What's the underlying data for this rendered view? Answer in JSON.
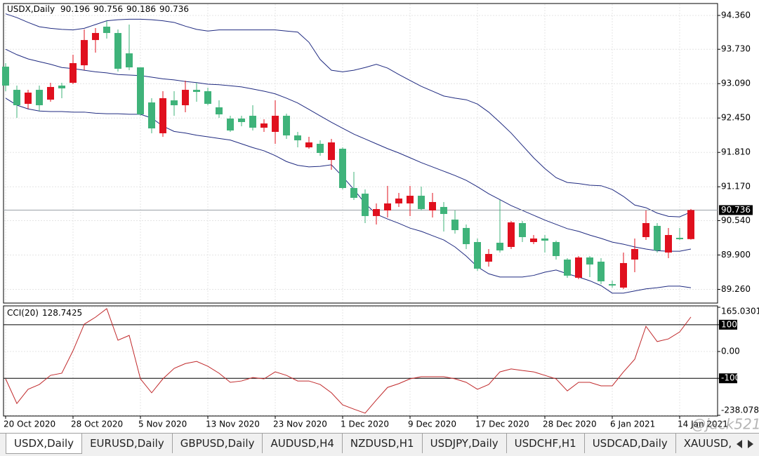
{
  "chart_data": [
    {
      "type": "candlestick",
      "title": "USDX,Daily",
      "categories": [
        "20 Oct 2020",
        null,
        null,
        null,
        null,
        null,
        "28 Oct 2020",
        null,
        null,
        null,
        null,
        null,
        "5 Nov 2020",
        null,
        null,
        null,
        null,
        null,
        "13 Nov 2020",
        null,
        null,
        null,
        null,
        null,
        "23 Nov 2020",
        null,
        null,
        null,
        null,
        null,
        "1 Dec 2020",
        null,
        null,
        null,
        null,
        null,
        "9 Dec 2020",
        null,
        null,
        null,
        null,
        null,
        "17 Dec 2020",
        null,
        null,
        null,
        null,
        null,
        "28 Dec 2020",
        null,
        null,
        null,
        null,
        null,
        "6 Jan 2021",
        null,
        null,
        null,
        null,
        null,
        "14 Jan 2021",
        null
      ],
      "open": [
        93.406,
        92.975,
        92.714,
        92.975,
        92.792,
        93.054,
        93.106,
        93.432,
        93.902,
        94.151,
        94.033,
        93.654,
        93.393,
        92.74,
        92.166,
        92.779,
        92.688,
        92.975,
        92.949,
        92.649,
        92.44,
        92.44,
        92.492,
        92.27,
        92.192,
        92.492,
        92.126,
        91.904,
        91.97,
        91.669,
        91.878,
        91.147,
        91.042,
        90.625,
        90.729,
        90.86,
        90.86,
        91.003,
        90.729,
        90.794,
        90.559,
        90.403,
        90.141,
        89.776,
        90.128,
        90.05,
        90.494,
        90.141,
        90.207,
        90.141,
        89.815,
        89.476,
        89.854,
        89.776,
        89.358,
        89.293,
        89.815,
        90.233,
        90.442,
        89.946,
        90.22,
        90.196
      ],
      "high": [
        93.472,
        93.054,
        92.975,
        93.054,
        93.106,
        93.106,
        93.628,
        94.098,
        94.125,
        94.255,
        94.098,
        94.19,
        93.393,
        92.819,
        92.949,
        92.949,
        93.145,
        93.106,
        93.015,
        92.779,
        92.492,
        92.492,
        92.688,
        92.427,
        92.779,
        92.531,
        92.192,
        92.1,
        92.035,
        92.061,
        91.904,
        91.447,
        91.121,
        90.86,
        91.186,
        91.055,
        91.186,
        91.173,
        91.055,
        90.886,
        90.729,
        90.468,
        90.207,
        90.011,
        90.925,
        90.533,
        90.533,
        90.272,
        90.272,
        90.167,
        89.841,
        89.88,
        89.88,
        89.841,
        89.423,
        89.946,
        90.207,
        90.729,
        90.494,
        90.403,
        90.403,
        90.756
      ],
      "low": [
        92.949,
        92.453,
        92.623,
        92.584,
        92.753,
        92.819,
        93.08,
        93.341,
        93.668,
        93.929,
        93.315,
        93.341,
        92.492,
        92.166,
        92.1,
        92.492,
        92.557,
        92.753,
        92.688,
        92.453,
        92.192,
        92.296,
        92.218,
        92.192,
        91.97,
        92.061,
        91.904,
        91.878,
        91.748,
        91.486,
        91.121,
        90.925,
        90.494,
        90.468,
        90.599,
        90.794,
        90.625,
        90.729,
        90.599,
        90.337,
        90.298,
        90.011,
        89.606,
        89.684,
        89.946,
        90.011,
        90.141,
        90.102,
        89.946,
        89.815,
        89.476,
        89.449,
        89.489,
        89.358,
        89.293,
        89.267,
        89.58,
        90.181,
        89.946,
        89.841,
        90.181,
        90.186
      ],
      "close": [
        93.054,
        92.688,
        92.923,
        92.688,
        93.028,
        93.002,
        93.472,
        93.902,
        94.033,
        94.033,
        93.367,
        93.393,
        92.518,
        92.257,
        92.819,
        92.688,
        92.975,
        92.936,
        92.714,
        92.518,
        92.218,
        92.375,
        92.27,
        92.349,
        92.492,
        92.126,
        92.035,
        91.996,
        91.8,
        91.996,
        91.147,
        90.964,
        90.625,
        90.755,
        90.86,
        90.951,
        91.003,
        90.755,
        90.886,
        90.664,
        90.363,
        90.102,
        89.645,
        89.919,
        89.985,
        90.507,
        90.233,
        90.207,
        90.167,
        89.88,
        89.515,
        89.854,
        89.723,
        89.41,
        89.332,
        89.75,
        90.011,
        90.494,
        89.985,
        90.272,
        90.194,
        90.736
      ],
      "up_color": "#e0101e",
      "down_color": "#3fb37a",
      "series": [
        {
          "color": "#1f2a80",
          "values": [
            94.39,
            94.32,
            94.23,
            94.15,
            94.12,
            94.1,
            94.09,
            94.12,
            94.19,
            94.26,
            94.28,
            94.29,
            94.29,
            94.28,
            94.26,
            94.23,
            94.16,
            94.1,
            94.07,
            94.09,
            94.09,
            94.09,
            94.09,
            94.09,
            94.09,
            94.07,
            94.05,
            93.86,
            93.54,
            93.34,
            93.31,
            93.34,
            93.39,
            93.45,
            93.38,
            93.26,
            93.15,
            93.04,
            92.95,
            92.86,
            92.82,
            92.79,
            92.71,
            92.56,
            92.37,
            92.17,
            91.94,
            91.71,
            91.51,
            91.34,
            91.25,
            91.23,
            91.2,
            91.19,
            91.12,
            90.99,
            90.83,
            90.78,
            90.68,
            90.62,
            90.61,
            90.7
          ]
        },
        {
          "color": "#1f2a80",
          "values": [
            93.73,
            93.63,
            93.55,
            93.5,
            93.45,
            93.39,
            93.37,
            93.34,
            93.31,
            93.29,
            93.26,
            93.25,
            93.24,
            93.21,
            93.18,
            93.16,
            93.13,
            93.11,
            93.08,
            93.07,
            93.05,
            93.03,
            92.99,
            92.95,
            92.9,
            92.82,
            92.73,
            92.61,
            92.49,
            92.37,
            92.26,
            92.15,
            92.06,
            91.97,
            91.88,
            91.8,
            91.71,
            91.62,
            91.54,
            91.46,
            91.38,
            91.29,
            91.17,
            91.04,
            90.93,
            90.82,
            90.73,
            90.64,
            90.55,
            90.47,
            90.39,
            90.34,
            90.27,
            90.21,
            90.14,
            90.1,
            90.05,
            90.01,
            89.98,
            89.97,
            89.97,
            90.01
          ]
        },
        {
          "color": "#1f2a80",
          "values": [
            92.82,
            92.69,
            92.62,
            92.58,
            92.57,
            92.57,
            92.56,
            92.56,
            92.54,
            92.53,
            92.53,
            92.52,
            92.52,
            92.45,
            92.3,
            92.2,
            92.17,
            92.13,
            92.1,
            92.07,
            92.04,
            91.97,
            91.9,
            91.84,
            91.75,
            91.64,
            91.57,
            91.54,
            91.55,
            91.58,
            91.36,
            91.12,
            90.86,
            90.66,
            90.57,
            90.49,
            90.4,
            90.34,
            90.26,
            90.18,
            90.05,
            89.88,
            89.68,
            89.55,
            89.49,
            89.49,
            89.49,
            89.52,
            89.58,
            89.62,
            89.55,
            89.49,
            89.42,
            89.33,
            89.19,
            89.19,
            89.23,
            89.27,
            89.29,
            89.32,
            89.32,
            89.29
          ]
        }
      ],
      "current_price": 90.736,
      "ylim": [
        89.005,
        94.582
      ],
      "yticks": [
        {
          "value": 94.36,
          "label": "94.360"
        },
        {
          "value": 93.73,
          "label": "93.730"
        },
        {
          "value": 93.09,
          "label": "93.090"
        },
        {
          "value": 92.45,
          "label": "92.450"
        },
        {
          "value": 91.81,
          "label": "91.810"
        },
        {
          "value": 91.17,
          "label": "91.170"
        },
        {
          "value": 90.54,
          "label": "90.540"
        },
        {
          "value": 89.9,
          "label": "89.900"
        },
        {
          "value": 89.26,
          "label": "89.260"
        }
      ],
      "grid": true
    },
    {
      "type": "line",
      "title": "CCI(20)",
      "color": "#c0282a",
      "values": [
        -102,
        -194,
        -141,
        -123,
        -89,
        -81,
        3,
        102,
        128,
        160,
        42,
        60,
        -102,
        -154,
        -102,
        -63,
        -45,
        -37,
        -55,
        -81,
        -115,
        -110,
        -97,
        -102,
        -76,
        -89,
        -110,
        -110,
        -123,
        -154,
        -199,
        -215,
        -230,
        -181,
        -134,
        -120,
        -102,
        -94,
        -94,
        -94,
        -102,
        -115,
        -141,
        -123,
        -76,
        -65,
        -71,
        -76,
        -89,
        -102,
        -147,
        -115,
        -115,
        -128,
        -128,
        -76,
        -29,
        94,
        37,
        47,
        73,
        128.7425
      ],
      "ylim": [
        -238.0783,
        165.0301
      ],
      "yticks": [
        165.0301,
        100,
        {
          "value": 0,
          "label": "0.00"
        },
        -100,
        -238.0783
      ],
      "levels": [
        100,
        -100
      ],
      "grid": true
    }
  ],
  "tabs": [
    "USDX,Daily",
    "EURUSD,Daily",
    "GBPUSD,Daily",
    "AUDUSD,H4",
    "NZDUSD,H1",
    "USDJPY,Daily",
    "USDCHF,H1",
    "USDCAD,Daily",
    "XAUUSD,Daily"
  ],
  "watermark": "@jack521"
}
